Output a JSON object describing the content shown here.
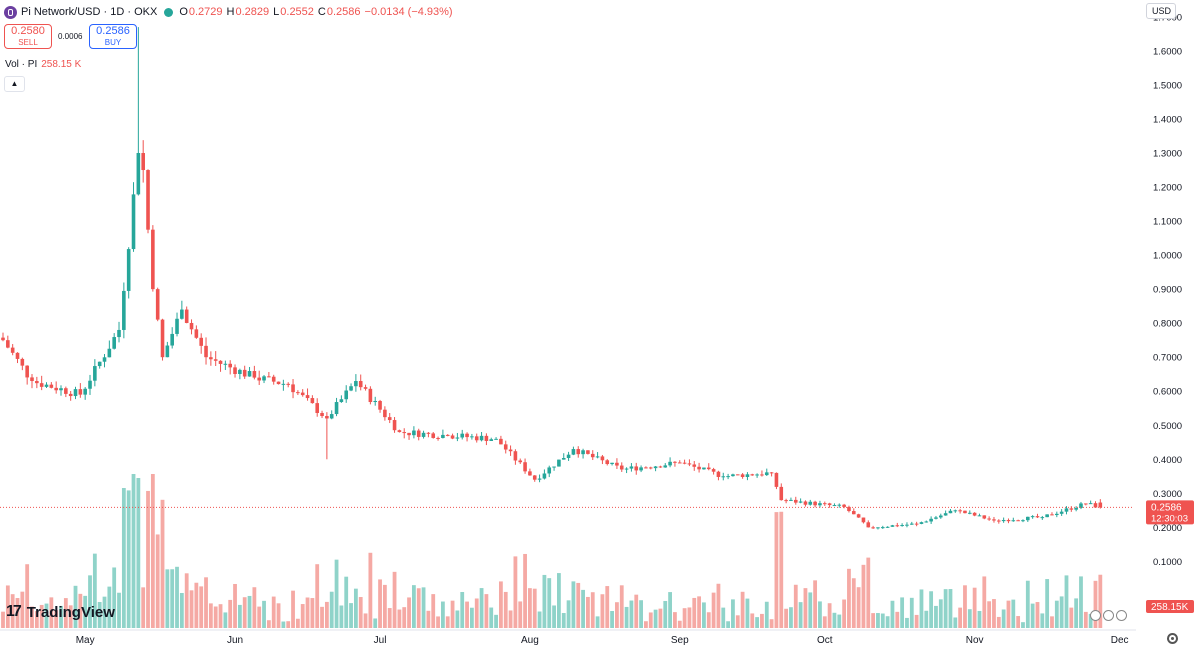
{
  "header": {
    "symbol": "Pi Network/USD · 1D · OKX",
    "open_label": "O",
    "open": "0.2729",
    "high_label": "H",
    "high": "0.2829",
    "low_label": "L",
    "low": "0.2552",
    "close_label": "C",
    "close": "0.2586",
    "change": "−0.0134 (−4.93%)"
  },
  "trade": {
    "sell_price": "0.2580",
    "sell_label": "SELL",
    "spread": "0.0006",
    "buy_price": "0.2586",
    "buy_label": "BUY"
  },
  "volume_legend": {
    "label": "Vol · PI",
    "value": "258.15 K"
  },
  "currency_select": "USD",
  "brand": "TradingView",
  "colors": {
    "up": "#26a69a",
    "down": "#ef5350",
    "vol_up": "#8fd3c9",
    "vol_down": "#f5a9a4"
  },
  "icons": [
    "collapse-icon",
    "settings-icon",
    "currency-flag-icon"
  ],
  "chart_data": {
    "type": "candlestick",
    "title": "Pi Network/USD · 1D · OKX",
    "y_ticks": [
      "1.7000",
      "1.6000",
      "1.5000",
      "1.4000",
      "1.3000",
      "1.2000",
      "1.1000",
      "1.0000",
      "0.9000",
      "0.8000",
      "0.7000",
      "0.6000",
      "0.5000",
      "0.4000",
      "0.3000",
      "0.2000",
      "0.1000"
    ],
    "x_ticks": [
      "May",
      "Jun",
      "Jul",
      "Aug",
      "Sep",
      "Oct",
      "Nov",
      "Dec"
    ],
    "ylim": [
      0.085,
      1.76
    ],
    "last_price": "0.2586",
    "countdown": "12:30:03",
    "volume_last": "258.15K",
    "key_points": [
      {
        "date": "Apr 14",
        "close": 0.75
      },
      {
        "date": "Apr 20",
        "close": 0.63
      },
      {
        "date": "Apr 30",
        "close": 0.59
      },
      {
        "date": "May 8",
        "close": 0.78
      },
      {
        "date": "May 12",
        "close": 1.3,
        "high": 1.67
      },
      {
        "date": "May 13",
        "close": 1.25
      },
      {
        "date": "May 15",
        "close": 0.9
      },
      {
        "date": "May 17",
        "close": 0.7
      },
      {
        "date": "May 21",
        "close": 0.84
      },
      {
        "date": "May 26",
        "close": 0.7
      },
      {
        "date": "Jun 5",
        "close": 0.64
      },
      {
        "date": "Jun 12",
        "close": 0.62
      },
      {
        "date": "Jun 20",
        "close": 0.52,
        "low": 0.4
      },
      {
        "date": "Jun 26",
        "close": 0.63
      },
      {
        "date": "Jul 5",
        "close": 0.48
      },
      {
        "date": "Jul 15",
        "close": 0.47
      },
      {
        "date": "Jul 25",
        "close": 0.46
      },
      {
        "date": "Aug 2",
        "close": 0.34
      },
      {
        "date": "Aug 10",
        "close": 0.43
      },
      {
        "date": "Aug 20",
        "close": 0.37
      },
      {
        "date": "Sep 1",
        "close": 0.39
      },
      {
        "date": "Sep 10",
        "close": 0.35
      },
      {
        "date": "Sep 20",
        "close": 0.36
      },
      {
        "date": "Sep 22",
        "close": 0.28
      },
      {
        "date": "Oct 5",
        "close": 0.26
      },
      {
        "date": "Oct 10",
        "close": 0.2
      },
      {
        "date": "Oct 20",
        "close": 0.21
      },
      {
        "date": "Oct 28",
        "close": 0.25
      },
      {
        "date": "Nov 5",
        "close": 0.22
      },
      {
        "date": "Nov 15",
        "close": 0.23
      },
      {
        "date": "Nov 24",
        "close": 0.27
      },
      {
        "date": "Nov 27",
        "close": 0.2586
      }
    ]
  }
}
